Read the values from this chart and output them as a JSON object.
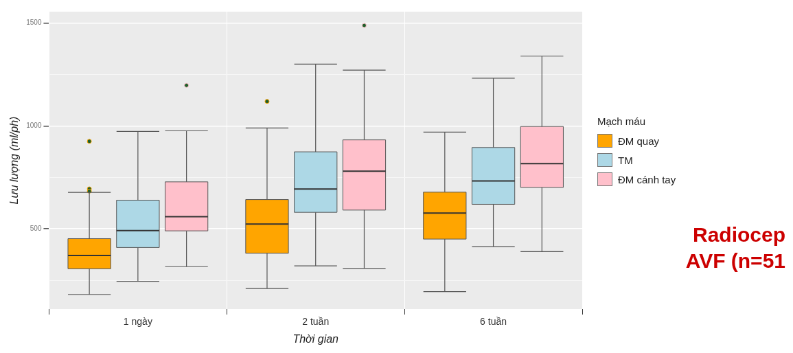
{
  "chart_data": {
    "type": "box",
    "xlabel": "Thời gian",
    "ylabel": "Lưu lượng (ml/ph)",
    "legend_title": "Mạch máu",
    "legend": "right",
    "grid": true,
    "categories": [
      "1 ngày",
      "2 tuần",
      "6 tuần"
    ],
    "ylim": [
      110,
      1555
    ],
    "yticks": [
      {
        "value": 250,
        "label": null
      },
      500,
      {
        "value": 750,
        "label": null
      },
      1000,
      {
        "value": 1250,
        "label": null
      },
      1500
    ],
    "annotations": [
      "Radiocep AVF (n=51"
    ],
    "series": [
      {
        "name": "ĐM quay",
        "color": "#ffa500",
        "boxes": [
          {
            "low": 181,
            "q1": 306,
            "median": 370,
            "q3": 452,
            "high": 677,
            "outliers": [
              925,
              694,
              683
            ]
          },
          {
            "low": 210,
            "q1": 381,
            "median": 523,
            "q3": 642,
            "high": 990,
            "outliers": [
              1119
            ]
          },
          {
            "low": 195,
            "q1": 450,
            "median": 576,
            "q3": 678,
            "high": 970
          }
        ]
      },
      {
        "name": "TM",
        "color": "#add8e6",
        "boxes": [
          {
            "low": 245,
            "q1": 409,
            "median": 491,
            "q3": 639,
            "high": 973
          },
          {
            "low": 320,
            "q1": 580,
            "median": 693,
            "q3": 874,
            "high": 1300
          },
          {
            "low": 413,
            "q1": 619,
            "median": 732,
            "q3": 895,
            "high": 1232
          }
        ]
      },
      {
        "name": "ĐM cánh tay",
        "color": "#ffc0cb",
        "boxes": [
          {
            "low": 316,
            "q1": 490,
            "median": 559,
            "q3": 728,
            "high": 976,
            "outliers": [
              1197
            ]
          },
          {
            "low": 307,
            "q1": 591,
            "median": 780,
            "q3": 932,
            "high": 1271,
            "outliers": [
              1488
            ]
          },
          {
            "low": 389,
            "q1": 701,
            "median": 817,
            "q3": 997,
            "high": 1339
          }
        ]
      }
    ]
  }
}
